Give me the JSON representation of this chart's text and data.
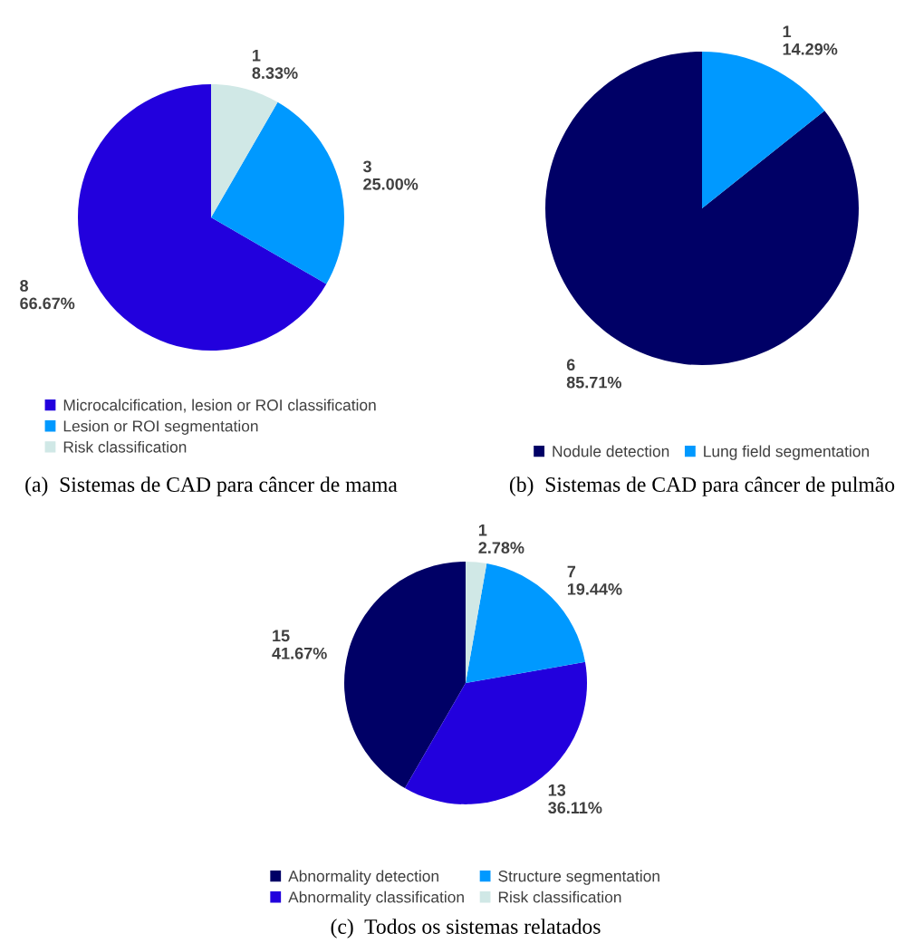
{
  "chart_data": [
    {
      "type": "pie",
      "categories": [
        "Microcalcification, lesion or ROI classification",
        "Lesion or ROI segmentation",
        "Risk classification"
      ],
      "values": [
        8,
        3,
        1
      ],
      "colors": [
        "#2200dd",
        "#0099ff",
        "#d0e8e6"
      ],
      "value_labels": [
        "8\n66.67%",
        "3\n25.00%",
        "1\n8.33%"
      ],
      "legend": "bottom",
      "annotations": [
        "(a)  Sistemas de CAD para câncer de mama"
      ]
    },
    {
      "type": "pie",
      "categories": [
        "Nodule detection",
        "Lung field segmentation"
      ],
      "values": [
        6,
        1
      ],
      "colors": [
        "#000066",
        "#0099ff"
      ],
      "value_labels": [
        "6\n85.71%",
        "1\n14.29%"
      ],
      "legend": "bottom",
      "annotations": [
        "(b)  Sistemas de CAD para câncer de pulmão"
      ]
    },
    {
      "type": "pie",
      "categories": [
        "Abnormality detection",
        "Abnormality classification",
        "Structure segmentation",
        "Risk classification"
      ],
      "values": [
        15,
        13,
        7,
        1
      ],
      "colors": [
        "#000066",
        "#2200dd",
        "#0099ff",
        "#d0e8e6"
      ],
      "value_labels": [
        "15\n41.67%",
        "13\n36.11%",
        "7\n19.44%",
        "1\n2.78%"
      ],
      "legend": "bottom",
      "annotations": [
        "(c)  Todos os sistemas relatados"
      ]
    }
  ]
}
